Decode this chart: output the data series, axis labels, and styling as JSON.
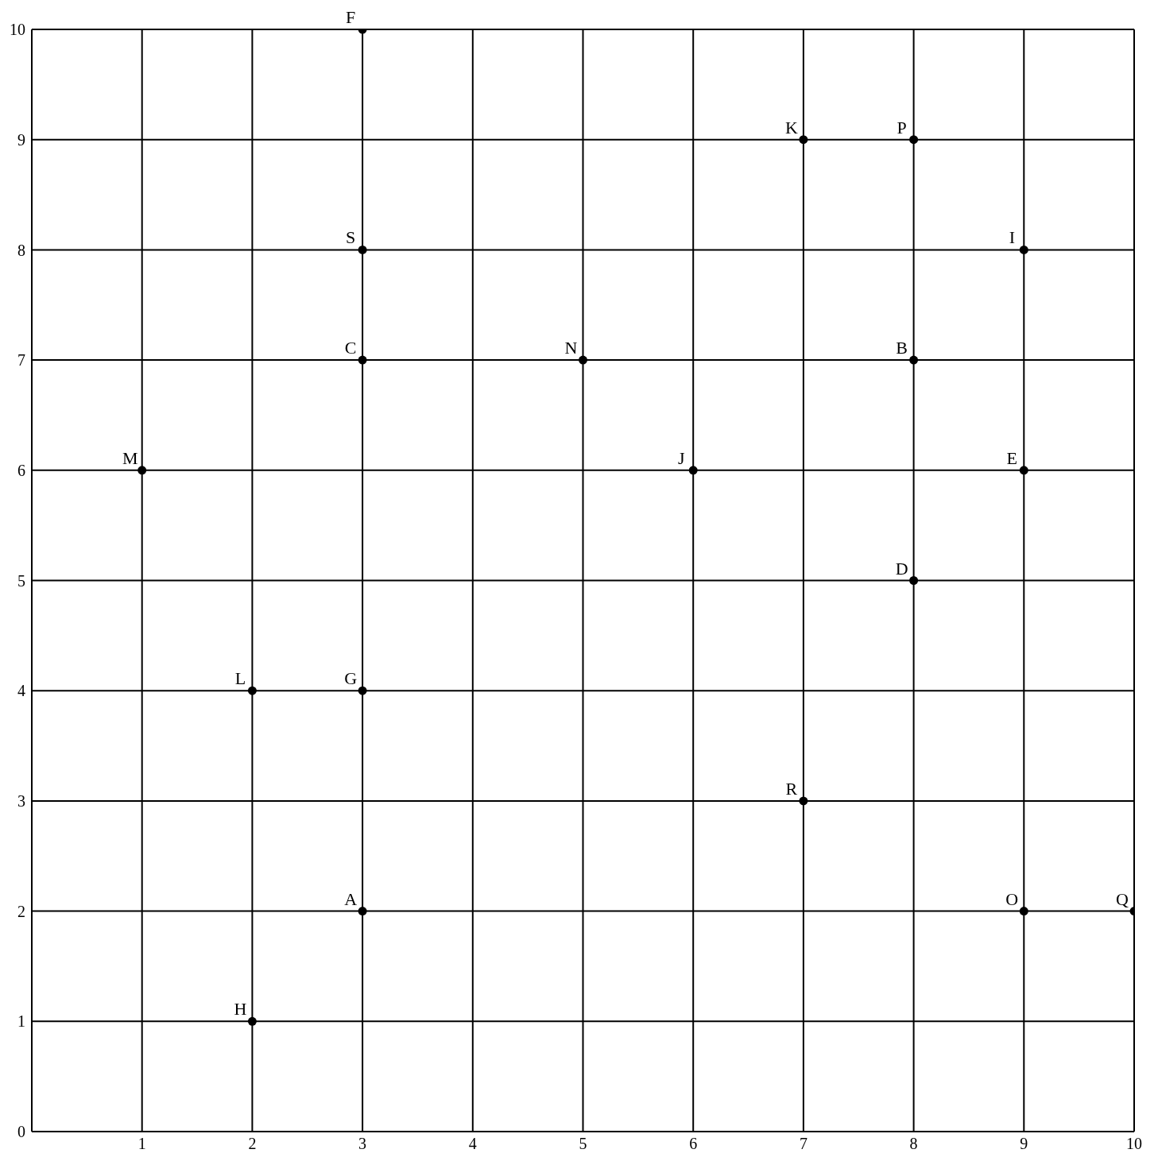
{
  "chart_data": {
    "type": "scatter",
    "x": [
      3,
      8,
      3,
      8,
      9,
      3,
      3,
      2,
      9,
      6,
      7,
      2,
      1,
      5,
      9,
      8,
      10,
      7,
      3
    ],
    "values": [
      2,
      7,
      7,
      5,
      6,
      10,
      4,
      1,
      8,
      6,
      9,
      4,
      6,
      7,
      2,
      9,
      2,
      3,
      8
    ],
    "value_labels": [
      "A",
      "B",
      "C",
      "D",
      "E",
      "F",
      "G",
      "H",
      "I",
      "J",
      "K",
      "L",
      "M",
      "N",
      "O",
      "P",
      "Q",
      "R",
      "S"
    ],
    "color": "#000000",
    "marker": "circle",
    "grid": true,
    "xlim": [
      0,
      10
    ],
    "xticks": [
      1,
      2,
      3,
      4,
      5,
      6,
      7,
      8,
      9,
      10
    ],
    "ylim": [
      0,
      10
    ],
    "yticks": [
      0,
      1,
      2,
      3,
      4,
      5,
      6,
      7,
      8,
      9,
      10
    ]
  }
}
